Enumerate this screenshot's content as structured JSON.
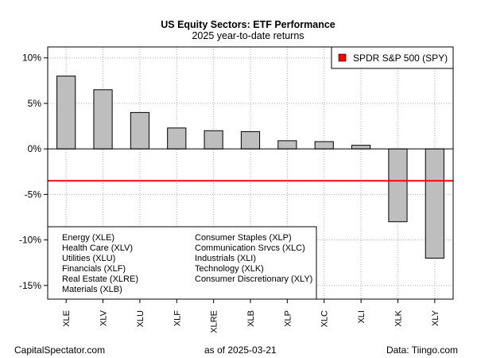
{
  "chart_data": {
    "type": "bar",
    "title": "US Equity Sectors: ETF Performance",
    "subtitle": "2025 year-to-date returns",
    "categories": [
      "XLE",
      "XLV",
      "XLU",
      "XLF",
      "XLRE",
      "XLB",
      "XLP",
      "XLC",
      "XLI",
      "XLK",
      "XLY"
    ],
    "values": [
      8.0,
      6.5,
      4.0,
      2.3,
      2.0,
      1.9,
      0.9,
      0.8,
      0.4,
      -8.0,
      -12.0
    ],
    "ylim": [
      -16.5,
      11.2
    ],
    "yticks": [
      10,
      5,
      0,
      -5,
      -10,
      -15
    ],
    "ytick_labels": [
      "10%",
      "5%",
      "0%",
      "-5%",
      "-10%",
      "-15%"
    ],
    "grid": true,
    "bar_color": "#bebebe",
    "reference_line": {
      "name": "SPDR S&P 500 (SPY)",
      "value": -3.5,
      "color": "#ff0000"
    },
    "legend_position": "top-right",
    "key_box": {
      "position": "bottom-left",
      "left_column": [
        "Energy (XLE)",
        "Health Care (XLV)",
        "Utilities (XLU)",
        "Financials (XLF)",
        "Real Estate (XLRE)",
        "Materials (XLB)"
      ],
      "right_column": [
        "Consumer Staples (XLP)",
        "Communication Srvcs (XLC)",
        "Industrials (XLI)",
        "Technology (XLK)",
        "Consumer Discretionary (XLY)"
      ]
    }
  },
  "footer": {
    "left": "CapitalSpectator.com",
    "center": "as of   2025-03-21",
    "right": "Data: Tiingo.com"
  }
}
